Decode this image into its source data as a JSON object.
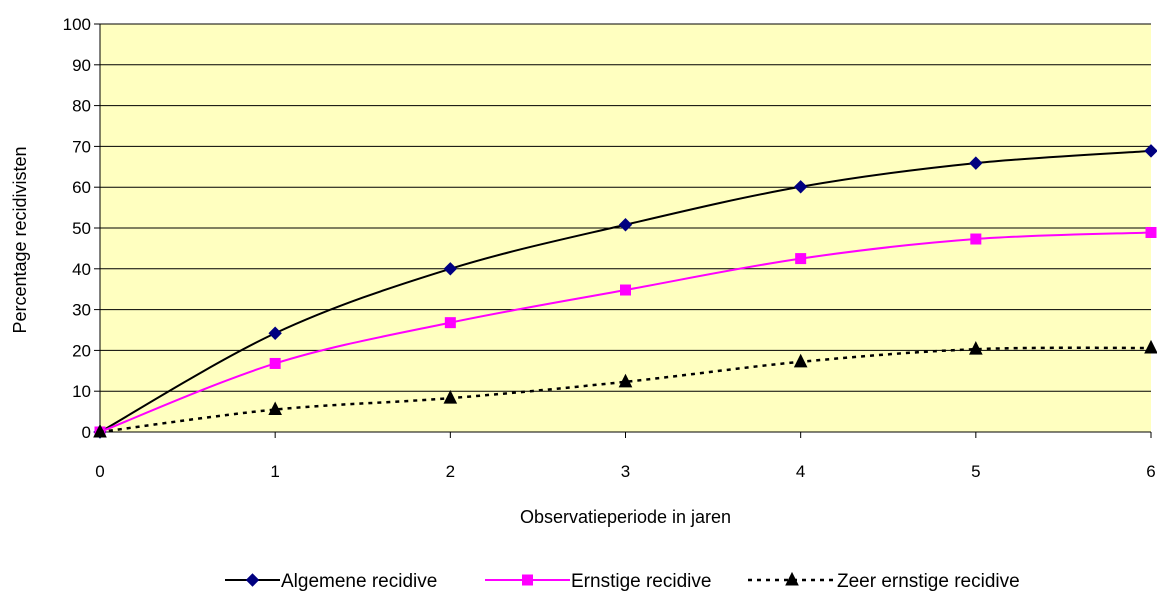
{
  "chart_data": {
    "type": "line",
    "title": "",
    "xlabel": "Observatieperiode in jaren",
    "ylabel": "Percentage recidivisten",
    "x": [
      0,
      1,
      2,
      3,
      4,
      5,
      6
    ],
    "xlim": [
      0,
      6
    ],
    "ylim": [
      0,
      100
    ],
    "yticks": [
      0,
      10,
      20,
      30,
      40,
      50,
      60,
      70,
      80,
      90,
      100
    ],
    "grid": "horizontal",
    "legend_position": "bottom",
    "plot_background": "#FFFFC0",
    "series": [
      {
        "name": "Algemene recidive",
        "values": [
          0,
          24.2,
          40.0,
          50.8,
          60.1,
          65.9,
          68.9
        ],
        "line_color": "#000000",
        "marker_color": "#000080",
        "marker": "diamond",
        "line_style": "solid"
      },
      {
        "name": "Ernstige recidive",
        "values": [
          0,
          16.8,
          26.8,
          34.8,
          42.5,
          47.3,
          48.9
        ],
        "line_color": "#FF00FF",
        "marker_color": "#FF00FF",
        "marker": "square",
        "line_style": "solid"
      },
      {
        "name": "Zeer ernstige recidive",
        "values": [
          0,
          5.5,
          8.3,
          12.3,
          17.2,
          20.3,
          20.6
        ],
        "line_color": "#000000",
        "marker_color": "#000000",
        "marker": "triangle",
        "line_style": "dotted"
      }
    ]
  }
}
